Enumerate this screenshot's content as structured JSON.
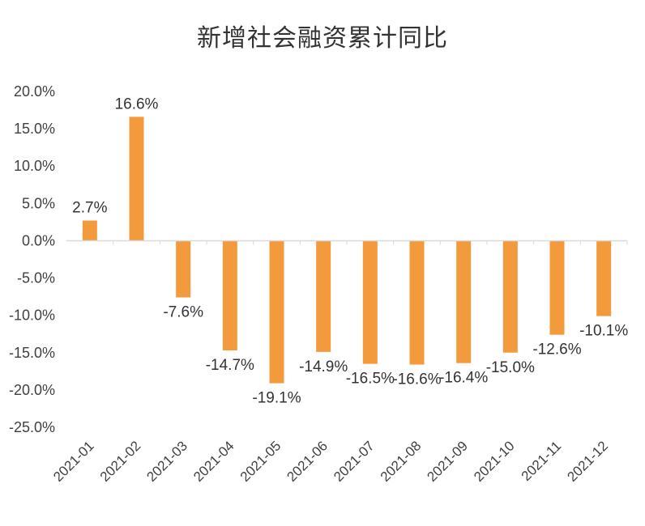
{
  "chart_data": {
    "type": "bar",
    "title": "新增社会融资累计同比",
    "categories": [
      "2021-01",
      "2021-02",
      "2021-03",
      "2021-04",
      "2021-05",
      "2021-06",
      "2021-07",
      "2021-08",
      "2021-09",
      "2021-10",
      "2021-11",
      "2021-12"
    ],
    "values": [
      2.7,
      16.6,
      -7.6,
      -14.7,
      -19.1,
      -14.9,
      -16.5,
      -16.6,
      -16.4,
      -15.0,
      -12.6,
      -10.1
    ],
    "data_labels": [
      "2.7%",
      "16.6%",
      "-7.6%",
      "-14.7%",
      "-19.1%",
      "-14.9%",
      "-16.5%",
      "-16.6%",
      "-16.4%",
      "-15.0%",
      "-12.6%",
      "-10.1%"
    ],
    "y_ticks": [
      20,
      15,
      10,
      5,
      0,
      -5,
      -10,
      -15,
      -20,
      -25
    ],
    "y_tick_labels": [
      "20.0%",
      "15.0%",
      "10.0%",
      "5.0%",
      "0.0%",
      "-5.0%",
      "-10.0%",
      "-15.0%",
      "-20.0%",
      "-25.0%"
    ],
    "ylim": [
      -25,
      20
    ],
    "xlabel": "",
    "ylabel": "",
    "grid": false,
    "legend": "none",
    "bar_color": "#F39A3D",
    "axis_color": "#D9D9D9"
  }
}
